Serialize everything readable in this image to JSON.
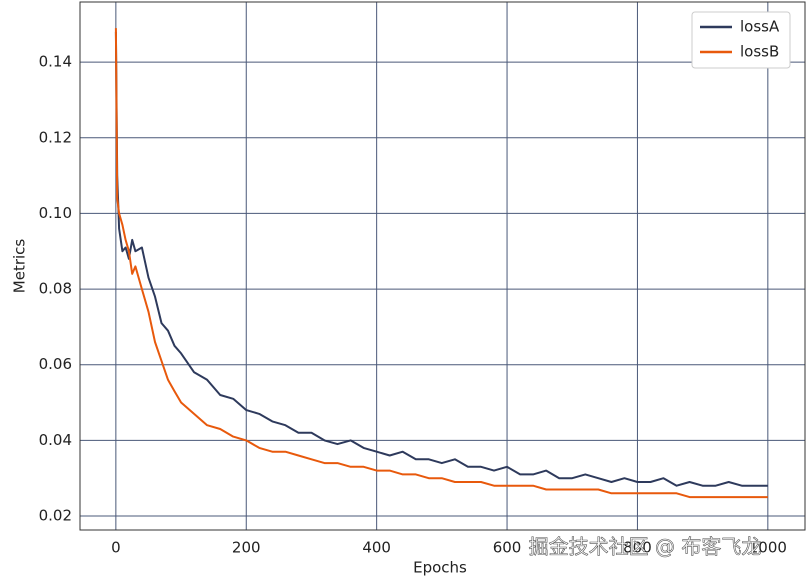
{
  "chart_data": {
    "type": "line",
    "x_label": "Epochs",
    "y_label": "Metrics",
    "x": [
      0,
      2,
      5,
      10,
      15,
      20,
      25,
      30,
      40,
      50,
      60,
      70,
      80,
      90,
      100,
      120,
      140,
      160,
      180,
      200,
      220,
      240,
      260,
      280,
      300,
      320,
      340,
      360,
      380,
      400,
      420,
      440,
      460,
      480,
      500,
      520,
      540,
      560,
      580,
      600,
      620,
      640,
      660,
      680,
      700,
      720,
      740,
      760,
      780,
      800,
      820,
      840,
      860,
      880,
      900,
      920,
      940,
      960,
      980,
      1000
    ],
    "series": [
      {
        "name": "lossA",
        "color": "#2e3a5c",
        "values": [
          0.148,
          0.11,
          0.096,
          0.09,
          0.091,
          0.088,
          0.093,
          0.09,
          0.091,
          0.083,
          0.078,
          0.071,
          0.069,
          0.065,
          0.063,
          0.058,
          0.056,
          0.052,
          0.051,
          0.048,
          0.047,
          0.045,
          0.044,
          0.042,
          0.042,
          0.04,
          0.039,
          0.04,
          0.038,
          0.037,
          0.036,
          0.037,
          0.035,
          0.035,
          0.034,
          0.035,
          0.033,
          0.033,
          0.032,
          0.033,
          0.031,
          0.031,
          0.032,
          0.03,
          0.03,
          0.031,
          0.03,
          0.029,
          0.03,
          0.029,
          0.029,
          0.03,
          0.028,
          0.029,
          0.028,
          0.028,
          0.029,
          0.028,
          0.028,
          0.028
        ]
      },
      {
        "name": "lossB",
        "color": "#e8590c",
        "values": [
          0.149,
          0.104,
          0.1,
          0.097,
          0.093,
          0.09,
          0.084,
          0.086,
          0.08,
          0.074,
          0.066,
          0.061,
          0.056,
          0.053,
          0.05,
          0.047,
          0.044,
          0.043,
          0.041,
          0.04,
          0.038,
          0.037,
          0.037,
          0.036,
          0.035,
          0.034,
          0.034,
          0.033,
          0.033,
          0.032,
          0.032,
          0.031,
          0.031,
          0.03,
          0.03,
          0.029,
          0.029,
          0.029,
          0.028,
          0.028,
          0.028,
          0.028,
          0.027,
          0.027,
          0.027,
          0.027,
          0.027,
          0.026,
          0.026,
          0.026,
          0.026,
          0.026,
          0.026,
          0.025,
          0.025,
          0.025,
          0.025,
          0.025,
          0.025,
          0.025
        ]
      }
    ],
    "xlim": [
      -55,
      1057
    ],
    "ylim": [
      0.0163,
      0.1559
    ],
    "xticks": [
      0,
      200,
      400,
      600,
      800,
      1000
    ],
    "yticks": [
      0.02,
      0.04,
      0.06,
      0.08,
      {
        "value": 0.1,
        "label": "0.10"
      },
      0.12,
      0.14
    ],
    "grid": true,
    "legend": "upper right"
  },
  "watermark": "掘金技术社区 @ 布客飞龙"
}
